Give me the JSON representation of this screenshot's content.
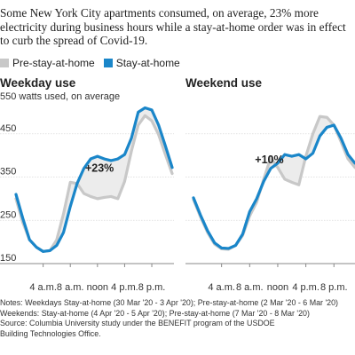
{
  "headline": "Some New York City apartments consumed, on average, 23% more electricity during business hours while a stay-at-home order was in effect to curb the spread of Covid-19.",
  "legend": [
    {
      "name": "Pre-stay-at-home",
      "color": "#c8c8c8"
    },
    {
      "name": "Stay-at-home",
      "color": "#1a86c9"
    }
  ],
  "unit_label": "550 watts used, on average",
  "notes": [
    "Notes: Weekdays Stay-at-home (30 Mar '20 - 3 Apr '20); Pre-stay-at-home (2 Mar '20 - 6 Mar '20)",
    "Weekends: Stay-at-home (4 Apr '20 - 5 Apr '20); Pre-stay-at-home (7 Mar '20 - 8 Mar '20)",
    "Source: Columbia University study under the BENEFIT program of the USDOE",
    "Building Technologies Office."
  ],
  "chart_data": [
    {
      "type": "line",
      "title": "Weekday use",
      "ylabel": "watts used, on average",
      "ylim": [
        150,
        550
      ],
      "yticks": [
        "150",
        "250",
        "350",
        "450"
      ],
      "xlim": [
        0,
        23
      ],
      "xticks": [
        {
          "x": 4,
          "label": "4 a.m."
        },
        {
          "x": 8,
          "label": "8 a.m."
        },
        {
          "x": 12,
          "label": "noon"
        },
        {
          "x": 16,
          "label": "4 p.m."
        },
        {
          "x": 20,
          "label": "8 p.m."
        }
      ],
      "annotation": {
        "text": "+23%",
        "x": 12.3,
        "y": 362
      },
      "x": [
        0,
        1,
        2,
        3,
        4,
        5,
        6,
        7,
        8,
        9,
        10,
        11,
        12,
        13,
        14,
        15,
        16,
        17,
        18,
        19,
        20,
        21,
        22,
        23
      ],
      "series": [
        {
          "name": "Pre-stay-at-home",
          "color": "#c8c8c8",
          "values": [
            300,
            245,
            205,
            188,
            178,
            180,
            205,
            265,
            338,
            335,
            312,
            305,
            300,
            303,
            305,
            300,
            340,
            410,
            470,
            492,
            480,
            448,
            402,
            358
          ]
        },
        {
          "name": "Stay-at-home",
          "color": "#1a86c9",
          "values": [
            310,
            255,
            205,
            188,
            178,
            180,
            192,
            222,
            282,
            335,
            370,
            392,
            398,
            392,
            388,
            392,
            402,
            440,
            500,
            510,
            505,
            470,
            422,
            372
          ]
        }
      ]
    },
    {
      "type": "line",
      "title": "Weekend use",
      "ylim": [
        150,
        550
      ],
      "xlim": [
        0,
        23
      ],
      "xticks": [
        {
          "x": 4,
          "label": "4 a.m."
        },
        {
          "x": 8,
          "label": "8 a.m."
        },
        {
          "x": 12,
          "label": "noon"
        },
        {
          "x": 16,
          "label": "4 p.m."
        },
        {
          "x": 20,
          "label": "8 p.m."
        }
      ],
      "annotation": {
        "text": "+10%",
        "x": 10.8,
        "y": 382
      },
      "x": [
        0,
        1,
        2,
        3,
        4,
        5,
        6,
        7,
        8,
        9,
        10,
        11,
        12,
        13,
        14,
        15,
        16,
        17,
        18,
        19,
        20,
        21,
        22,
        23
      ],
      "series": [
        {
          "name": "Pre-stay-at-home",
          "color": "#c8c8c8",
          "values": [
            298,
            258,
            222,
            195,
            184,
            183,
            192,
            215,
            260,
            292,
            345,
            395,
            372,
            345,
            338,
            332,
            398,
            450,
            490,
            488,
            470,
            432,
            392,
            372
          ]
        },
        {
          "name": "Stay-at-home",
          "color": "#1a86c9",
          "values": [
            302,
            262,
            226,
            198,
            186,
            185,
            192,
            218,
            270,
            300,
            340,
            370,
            382,
            402,
            398,
            402,
            392,
            405,
            445,
            465,
            470,
            440,
            402,
            382
          ]
        }
      ]
    }
  ]
}
